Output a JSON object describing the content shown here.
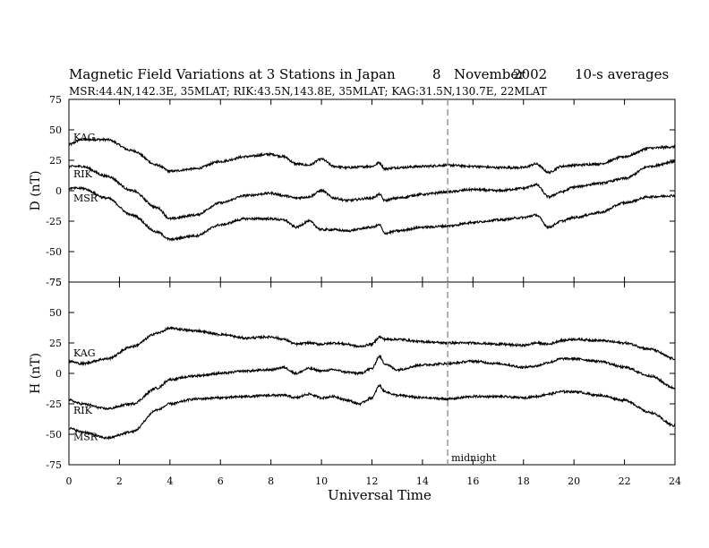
{
  "chart_data": {
    "type": "line",
    "title": "Magnetic Field Variations at 3 Stations in Japan",
    "date_day": "8",
    "date_month": "November",
    "date_year": "2002",
    "averaging": "10-s averages",
    "subtitle": "MSR:44.4N,142.3E, 35MLAT;  RIK:43.5N,143.8E, 35MLAT;  KAG:31.5N,130.7E, 22MLAT",
    "xlabel": "Universal Time",
    "xlim": [
      0,
      24
    ],
    "xticks": [
      0,
      2,
      4,
      6,
      8,
      10,
      12,
      14,
      16,
      18,
      20,
      22,
      24
    ],
    "vline": {
      "x": 15,
      "label": "midnight",
      "color": "#999999"
    },
    "panels": [
      {
        "ylabel": "D (nT)",
        "ylim": [
          -75,
          75
        ],
        "yticks": [
          75,
          50,
          25,
          0,
          -25,
          -50,
          -75
        ],
        "series": [
          {
            "name": "KAG",
            "x": [
              0,
              0.5,
              1.5,
              2.5,
              3.5,
              4,
              5,
              6,
              7,
              8,
              8.5,
              9,
              9.5,
              10,
              10.5,
              11,
              12,
              12.3,
              12.5,
              13,
              14,
              15,
              16,
              17,
              18,
              18.5,
              19,
              19.5,
              20,
              21,
              22,
              23,
              24
            ],
            "y": [
              38,
              42,
              42,
              33,
              21,
              16,
              18,
              24,
              28,
              30,
              28,
              22,
              21,
              26,
              20,
              19,
              20,
              23,
              18,
              19,
              20,
              21,
              20,
              19,
              19,
              22,
              15,
              20,
              21,
              22,
              28,
              35,
              36
            ],
            "label_y": 44
          },
          {
            "name": "RIK",
            "x": [
              0,
              0.5,
              1.5,
              2.5,
              3.5,
              4,
              5,
              6,
              7,
              8,
              8.5,
              9,
              9.5,
              10,
              10.5,
              11,
              12,
              12.3,
              12.5,
              13,
              14,
              15,
              16,
              17,
              18,
              18.5,
              19,
              19.5,
              20,
              21,
              22,
              23,
              24
            ],
            "y": [
              20,
              20,
              12,
              0,
              -14,
              -23,
              -20,
              -10,
              -4,
              -2,
              -4,
              -6,
              -5,
              0,
              -6,
              -8,
              -6,
              -3,
              -8,
              -6,
              -3,
              -1,
              1,
              0,
              2,
              5,
              -5,
              -1,
              3,
              6,
              10,
              20,
              24
            ],
            "label_y": 14
          },
          {
            "name": "MSR",
            "x": [
              0,
              0.5,
              1.5,
              2.5,
              3.5,
              4,
              5,
              6,
              7,
              8,
              8.5,
              9,
              9.5,
              10,
              10.5,
              11,
              12,
              12.3,
              12.5,
              13,
              14,
              15,
              16,
              17,
              18,
              18.5,
              19,
              19.5,
              20,
              21,
              22,
              23,
              24
            ],
            "y": [
              2,
              2,
              -6,
              -20,
              -34,
              -40,
              -37,
              -28,
              -23,
              -23,
              -24,
              -30,
              -25,
              -32,
              -32,
              -33,
              -30,
              -28,
              -35,
              -33,
              -30,
              -29,
              -26,
              -24,
              -22,
              -20,
              -30,
              -25,
              -22,
              -18,
              -10,
              -5,
              -4
            ],
            "label_y": -6
          }
        ]
      },
      {
        "ylabel": "H (nT)",
        "ylim": [
          -75,
          75
        ],
        "yticks": [
          75,
          50,
          25,
          0,
          -25,
          -50,
          -75
        ],
        "series": [
          {
            "name": "KAG",
            "x": [
              0,
              0.5,
              1.5,
              2.5,
              3.5,
              4,
              5,
              6,
              7,
              8,
              8.5,
              9,
              9.5,
              10,
              10.5,
              11,
              11.5,
              12,
              12.3,
              12.5,
              13,
              14,
              15,
              16,
              17,
              18,
              18.5,
              19,
              19.5,
              20,
              21,
              22,
              23,
              24
            ],
            "y": [
              10,
              8,
              12,
              22,
              33,
              37,
              35,
              32,
              29,
              30,
              28,
              24,
              25,
              24,
              25,
              24,
              22,
              24,
              30,
              28,
              28,
              26,
              25,
              25,
              24,
              23,
              25,
              24,
              27,
              28,
              27,
              25,
              20,
              12
            ],
            "label_y": 17
          },
          {
            "name": "RIK",
            "x": [
              0,
              0.5,
              1.5,
              2.5,
              3.5,
              4,
              5,
              6,
              7,
              8,
              8.5,
              9,
              9.5,
              10,
              10.5,
              11,
              11.5,
              12,
              12.3,
              12.5,
              13,
              14,
              15,
              16,
              17,
              18,
              18.5,
              19,
              19.5,
              20,
              21,
              22,
              23,
              24
            ],
            "y": [
              -22,
              -25,
              -29,
              -25,
              -12,
              -5,
              -2,
              0,
              2,
              3,
              5,
              0,
              4,
              2,
              3,
              1,
              0,
              4,
              14,
              8,
              3,
              7,
              8,
              10,
              8,
              5,
              6,
              9,
              12,
              12,
              10,
              5,
              -2,
              -12
            ],
            "label_y": -30
          },
          {
            "name": "MSR",
            "x": [
              0,
              0.5,
              1.5,
              2.5,
              3.5,
              4,
              5,
              6,
              7,
              8,
              8.5,
              9,
              9.5,
              10,
              10.5,
              11,
              11.5,
              12,
              12.3,
              12.5,
              13,
              14,
              15,
              16,
              17,
              18,
              18.5,
              19,
              19.5,
              20,
              21,
              22,
              23,
              24
            ],
            "y": [
              -45,
              -48,
              -53,
              -48,
              -30,
              -25,
              -21,
              -20,
              -19,
              -18,
              -18,
              -20,
              -17,
              -20,
              -19,
              -22,
              -25,
              -20,
              -10,
              -15,
              -18,
              -20,
              -21,
              -19,
              -19,
              -20,
              -19,
              -17,
              -15,
              -15,
              -18,
              -22,
              -32,
              -43
            ],
            "label_y": -52
          }
        ]
      }
    ]
  }
}
